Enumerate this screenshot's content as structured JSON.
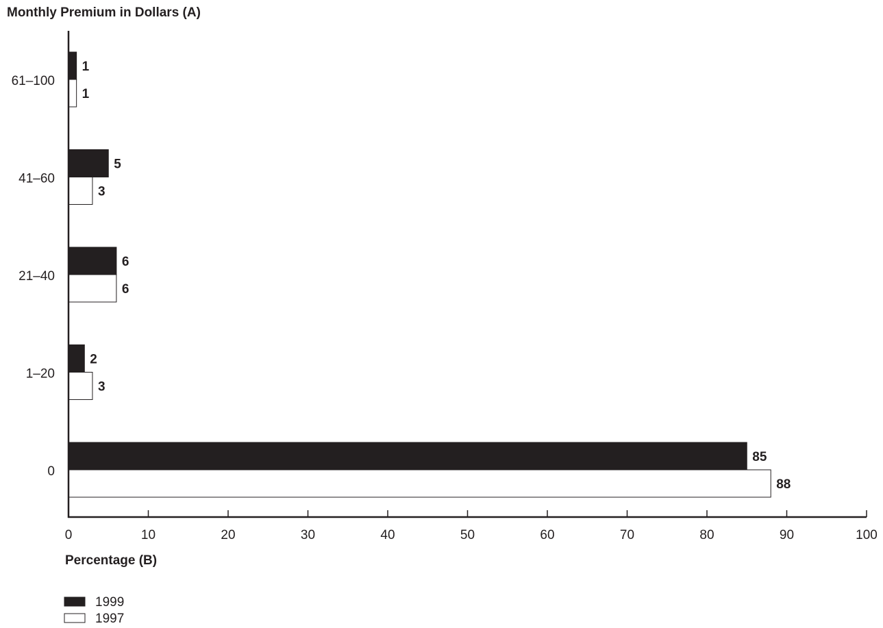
{
  "chart_data": {
    "type": "bar",
    "orientation": "horizontal",
    "title": "Monthly Premium in Dollars (A)",
    "xlabel": "Percentage (B)",
    "ylabel": "",
    "xlim": [
      0,
      100
    ],
    "x_ticks": [
      "0",
      "10",
      "20",
      "30",
      "40",
      "50",
      "60",
      "70",
      "80",
      "90",
      "100"
    ],
    "categories": [
      "61–100",
      "41–60",
      "21–40",
      "1–20",
      "0"
    ],
    "series": [
      {
        "name": "1999",
        "color": "#231f20",
        "values": [
          1,
          5,
          6,
          2,
          85
        ]
      },
      {
        "name": "1997",
        "color": "#ffffff",
        "values": [
          1,
          3,
          6,
          3,
          88
        ]
      }
    ],
    "grid": false,
    "legend": "bottom-left"
  }
}
